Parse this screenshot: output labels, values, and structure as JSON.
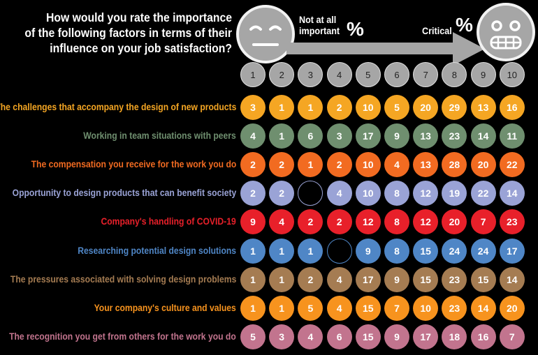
{
  "title_lines": [
    "How would you rate the importance",
    "of the following factors in terms of their",
    "influence on your job satisfaction?"
  ],
  "scale": {
    "low_label_lines": [
      "Not at all",
      "important"
    ],
    "high_label": "Critical",
    "pct_symbol": "%"
  },
  "chart_data": {
    "type": "table",
    "columns": [
      "1",
      "2",
      "3",
      "4",
      "5",
      "6",
      "7",
      "8",
      "9",
      "10"
    ],
    "rows": [
      {
        "label": "The challenges that accompany the design of new products",
        "color": "#f5a623",
        "values": [
          "3",
          "1",
          "1",
          "2",
          "10",
          "5",
          "20",
          "29",
          "13",
          "16"
        ]
      },
      {
        "label": "Working in team situations with peers",
        "color": "#6f8f6f",
        "values": [
          "4",
          "1",
          "6",
          "3",
          "17",
          "9",
          "13",
          "23",
          "14",
          "11"
        ]
      },
      {
        "label": "The compensation you receive for the work you do",
        "color": "#f26b21",
        "values": [
          "2",
          "2",
          "1",
          "2",
          "10",
          "4",
          "13",
          "28",
          "20",
          "22"
        ]
      },
      {
        "label": "Opportunity to design products that can benefit society",
        "color": "#9aa3d6",
        "values": [
          "2",
          "2",
          "",
          "4",
          "10",
          "8",
          "12",
          "19",
          "22",
          "14"
        ]
      },
      {
        "label": "Company's handling of COVID-19",
        "color": "#e8202a",
        "values": [
          "9",
          "4",
          "2",
          "2",
          "12",
          "8",
          "12",
          "20",
          "7",
          "23"
        ]
      },
      {
        "label": "Researching potential design solutions",
        "color": "#4f86c6",
        "values": [
          "1",
          "1",
          "1",
          "",
          "9",
          "8",
          "15",
          "24",
          "24",
          "17"
        ]
      },
      {
        "label": "The pressures associated with solving design problems",
        "color": "#a57c52",
        "values": [
          "1",
          "1",
          "2",
          "4",
          "17",
          "9",
          "15",
          "23",
          "15",
          "14"
        ]
      },
      {
        "label": "Your company's culture and values",
        "color": "#f7931e",
        "values": [
          "1",
          "1",
          "5",
          "4",
          "15",
          "7",
          "10",
          "23",
          "14",
          "20"
        ]
      },
      {
        "label": "The recognition you get from others for the work you do",
        "color": "#c2748e",
        "values": [
          "5",
          "3",
          "4",
          "6",
          "15",
          "9",
          "17",
          "18",
          "16",
          "7"
        ]
      }
    ]
  }
}
